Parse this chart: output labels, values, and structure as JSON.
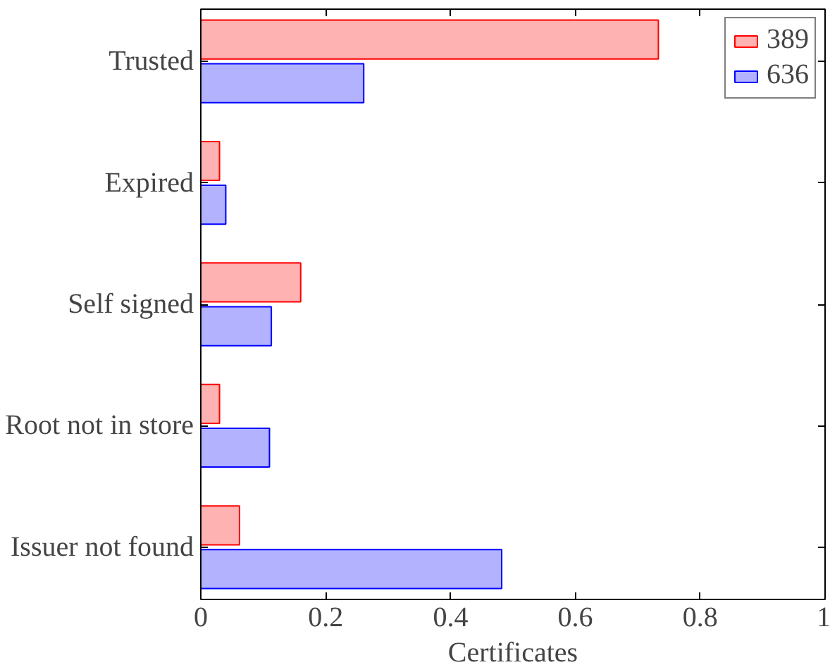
{
  "chart_data": {
    "type": "bar",
    "orientation": "horizontal",
    "xlabel": "Certificates",
    "categories": [
      "Trusted",
      "Expired",
      "Self signed",
      "Root not in store",
      "Issuer not found"
    ],
    "series": [
      {
        "name": "389",
        "color": "#ff0000",
        "values": [
          0.733,
          0.03,
          0.16,
          0.03,
          0.062
        ]
      },
      {
        "name": "636",
        "color": "#0000ff",
        "values": [
          0.261,
          0.04,
          0.113,
          0.11,
          0.482
        ]
      }
    ],
    "xlim": [
      0,
      1
    ],
    "xticks": [
      0,
      0.2,
      0.4,
      0.6,
      0.8,
      1
    ],
    "grid": false,
    "legend": "top right"
  }
}
